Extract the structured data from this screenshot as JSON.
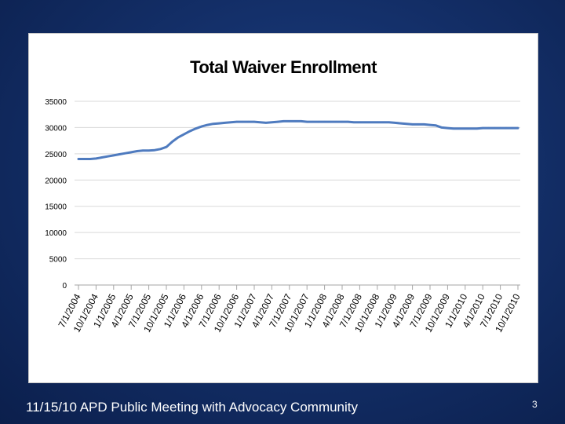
{
  "slide": {
    "footer": "11/15/10 APD Public Meeting with Advocacy Community",
    "page_number": "3",
    "colors": {
      "background": "#14306a",
      "line": "#4f7bbf",
      "grid": "#d9d9d9"
    }
  },
  "chart_data": {
    "type": "line",
    "title": "Total Waiver Enrollment",
    "xlabel": "",
    "ylabel": "",
    "ylim": [
      0,
      35000
    ],
    "yticks": [
      0,
      5000,
      10000,
      15000,
      20000,
      25000,
      30000,
      35000
    ],
    "grid": true,
    "x": [
      "7/1/2004",
      "8/1/2004",
      "9/1/2004",
      "10/1/2004",
      "11/1/2004",
      "12/1/2004",
      "1/1/2005",
      "2/1/2005",
      "3/1/2005",
      "4/1/2005",
      "5/1/2005",
      "6/1/2005",
      "7/1/2005",
      "8/1/2005",
      "9/1/2005",
      "10/1/2005",
      "11/1/2005",
      "12/1/2005",
      "1/1/2006",
      "2/1/2006",
      "3/1/2006",
      "4/1/2006",
      "5/1/2006",
      "6/1/2006",
      "7/1/2006",
      "8/1/2006",
      "9/1/2006",
      "10/1/2006",
      "11/1/2006",
      "12/1/2006",
      "1/1/2007",
      "2/1/2007",
      "3/1/2007",
      "4/1/2007",
      "5/1/2007",
      "6/1/2007",
      "7/1/2007",
      "8/1/2007",
      "9/1/2007",
      "10/1/2007",
      "11/1/2007",
      "12/1/2007",
      "1/1/2008",
      "2/1/2008",
      "3/1/2008",
      "4/1/2008",
      "5/1/2008",
      "6/1/2008",
      "7/1/2008",
      "8/1/2008",
      "9/1/2008",
      "10/1/2008",
      "11/1/2008",
      "12/1/2008",
      "1/1/2009",
      "2/1/2009",
      "3/1/2009",
      "4/1/2009",
      "5/1/2009",
      "6/1/2009",
      "7/1/2009",
      "8/1/2009",
      "9/1/2009",
      "10/1/2009",
      "11/1/2009",
      "12/1/2009",
      "1/1/2010",
      "2/1/2010",
      "3/1/2010",
      "4/1/2010",
      "5/1/2010",
      "6/1/2010",
      "7/1/2010",
      "8/1/2010",
      "9/1/2010",
      "10/1/2010"
    ],
    "series": [
      {
        "name": "Total Waiver Enrollment",
        "values": [
          24000,
          24000,
          24000,
          24100,
          24300,
          24500,
          24700,
          24900,
          25100,
          25300,
          25500,
          25600,
          25600,
          25700,
          25900,
          26300,
          27300,
          28100,
          28700,
          29300,
          29800,
          30200,
          30500,
          30700,
          30800,
          30900,
          31000,
          31100,
          31100,
          31100,
          31100,
          31000,
          30900,
          31000,
          31100,
          31200,
          31200,
          31200,
          31200,
          31100,
          31100,
          31100,
          31100,
          31100,
          31100,
          31100,
          31100,
          31000,
          31000,
          31000,
          31000,
          31000,
          31000,
          31000,
          30900,
          30800,
          30700,
          30600,
          30600,
          30600,
          30500,
          30400,
          30000,
          29900,
          29800,
          29800,
          29800,
          29800,
          29800,
          29900,
          29900,
          29900,
          29900,
          29900,
          29900,
          29900
        ]
      }
    ],
    "xtick_labels": [
      "7/1/2004",
      "10/1/2004",
      "1/1/2005",
      "4/1/2005",
      "7/1/2005",
      "10/1/2005",
      "1/1/2006",
      "4/1/2006",
      "7/1/2006",
      "10/1/2006",
      "1/1/2007",
      "4/1/2007",
      "7/1/2007",
      "10/1/2007",
      "1/1/2008",
      "4/1/2008",
      "7/1/2008",
      "10/1/2008",
      "1/1/2009",
      "4/1/2009",
      "7/1/2009",
      "10/1/2009",
      "1/1/2010",
      "4/1/2010",
      "7/1/2010",
      "10/1/2010"
    ]
  }
}
